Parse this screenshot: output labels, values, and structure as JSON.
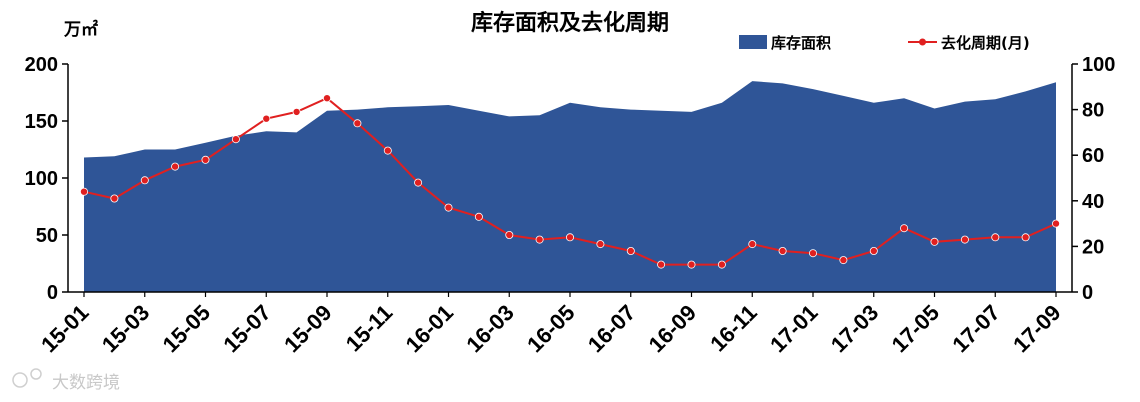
{
  "chart_data": {
    "type": "area+line",
    "title": "库存面积及去化周期",
    "left_axis_unit": "万㎡",
    "ylim_left": [
      0,
      200
    ],
    "yticks_left": [
      0,
      50,
      100,
      150,
      200
    ],
    "ylim_right": [
      0,
      100
    ],
    "yticks_right": [
      0,
      20,
      40,
      60,
      80,
      100
    ],
    "categories": [
      "15-01",
      "15-02",
      "15-03",
      "15-04",
      "15-05",
      "15-06",
      "15-07",
      "15-08",
      "15-09",
      "15-10",
      "15-11",
      "15-12",
      "16-01",
      "16-02",
      "16-03",
      "16-04",
      "16-05",
      "16-06",
      "16-07",
      "16-08",
      "16-09",
      "16-10",
      "16-11",
      "16-12",
      "17-01",
      "17-02",
      "17-03",
      "17-04",
      "17-05",
      "17-06",
      "17-07",
      "17-08",
      "17-09"
    ],
    "xtick_labels": [
      "15-01",
      "15-03",
      "15-05",
      "15-07",
      "15-09",
      "15-11",
      "16-01",
      "16-03",
      "16-05",
      "16-07",
      "16-09",
      "16-11",
      "17-01",
      "17-03",
      "17-05",
      "17-07",
      "17-09"
    ],
    "series": [
      {
        "name": "库存面积",
        "type": "area",
        "axis": "left",
        "color": "#2f5597",
        "values": [
          118,
          119,
          125,
          125,
          131,
          137,
          141,
          140,
          159,
          160,
          162,
          163,
          164,
          159,
          154,
          155,
          166,
          162,
          160,
          159,
          158,
          166,
          185,
          183,
          178,
          172,
          166,
          170,
          161,
          167,
          169,
          176,
          184
        ]
      },
      {
        "name": "去化周期(月)",
        "type": "line",
        "axis": "right",
        "color": "#e02020",
        "values": [
          44,
          41,
          49,
          55,
          58,
          67,
          76,
          79,
          85,
          74,
          62,
          48,
          37,
          33,
          25,
          23,
          24,
          21,
          18,
          12,
          12,
          12,
          21,
          18,
          17,
          14,
          18,
          28,
          22,
          23,
          24,
          24,
          30
        ]
      }
    ],
    "legend_position": "top-right",
    "grid": false
  },
  "watermark": "大数跨境"
}
